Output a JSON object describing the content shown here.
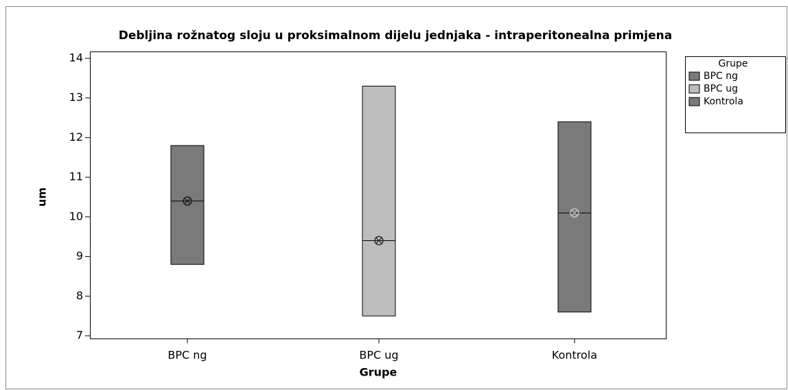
{
  "chart_data": {
    "type": "box",
    "title": "Debljina rožnatog sloju u proksimalnom dijelu jednjaka - intraperitonealna primjena",
    "x_label": "Grupe",
    "y_label": "um",
    "legend_title": "Grupe",
    "categories": [
      "BPC ng",
      "BPC ug",
      "Kontrola"
    ],
    "low": [
      8.8,
      7.5,
      7.6
    ],
    "high": [
      11.8,
      13.3,
      12.4
    ],
    "median": [
      10.4,
      9.4,
      10.1
    ],
    "mean": [
      10.4,
      9.4,
      10.1
    ],
    "colors": [
      "#7a7a7a",
      "#bdbdbd",
      "#7a7a7a"
    ],
    "mean_colors": [
      "#222222",
      "#333333",
      "#bdbdbd"
    ],
    "ylim": [
      7,
      14
    ],
    "yticks": [
      7,
      8,
      9,
      10,
      11,
      12,
      13,
      14
    ]
  }
}
